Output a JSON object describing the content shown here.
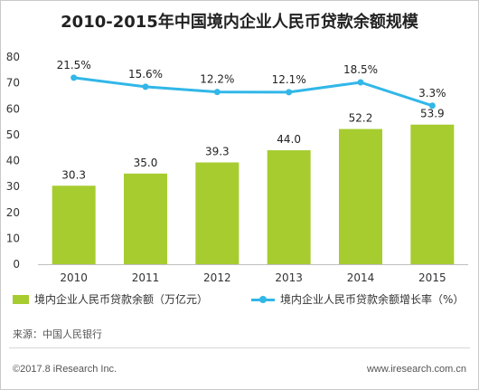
{
  "title": "2010-2015年中国境内企业人民币贷款余额规模",
  "chart_data": {
    "type": "bar",
    "categories": [
      "2010",
      "2011",
      "2012",
      "2013",
      "2014",
      "2015"
    ],
    "series": [
      {
        "name": "境内企业人民币贷款余额（万亿元）",
        "type": "bar",
        "color": "#a6cc2f",
        "values": [
          30.3,
          35.0,
          39.3,
          44.0,
          52.2,
          53.9
        ],
        "labels": [
          "30.3",
          "35.0",
          "39.3",
          "44.0",
          "52.2",
          "53.9"
        ]
      },
      {
        "name": "境内企业人民币贷款余额增长率（%）",
        "type": "line",
        "color": "#31b7e8",
        "values": [
          21.5,
          15.6,
          12.2,
          12.1,
          18.5,
          3.3
        ],
        "labels": [
          "21.5%",
          "15.6%",
          "12.2%",
          "12.1%",
          "18.5%",
          "3.3%"
        ]
      }
    ],
    "y_ticks": [
      "0",
      "10",
      "20",
      "30",
      "40",
      "50",
      "60",
      "70",
      "80"
    ],
    "ylim": [
      0,
      80
    ],
    "y2lim_note": "secondary axis not printed",
    "grid": false,
    "legend": "bottom"
  },
  "legend": {
    "bar_label": "境内企业人民币贷款余额（万亿元）",
    "line_label": "境内企业人民币贷款余额增长率（%）"
  },
  "source": "来源：中国人民银行",
  "copyright": "©2017.8 iResearch Inc.",
  "website": "www.iresearch.com.cn"
}
